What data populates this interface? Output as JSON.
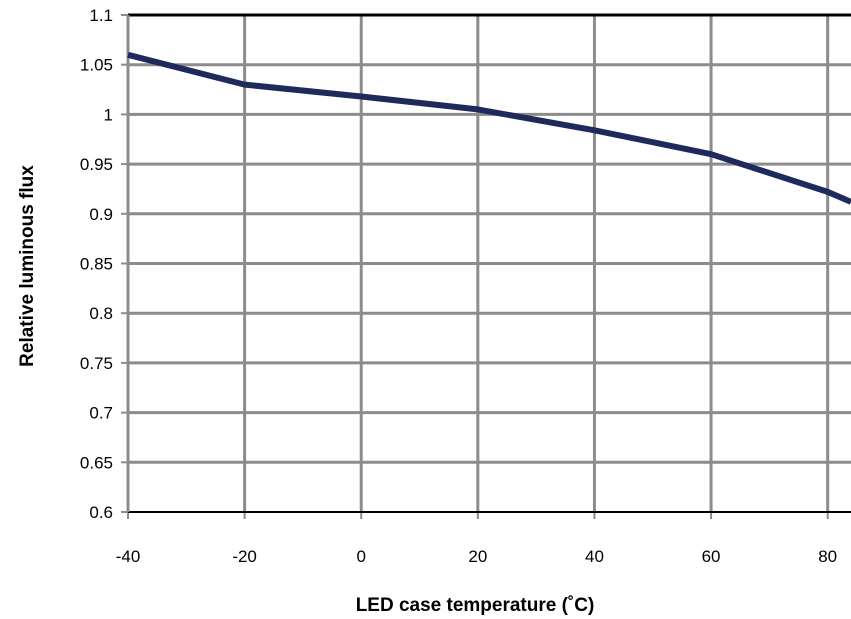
{
  "chart_data": {
    "type": "line",
    "title": "",
    "xlabel": "LED case temperature (˚C)",
    "ylabel": "Relative luminous flux",
    "x_ticks": [
      "-40",
      "-20",
      "0",
      "20",
      "40",
      "60",
      "80"
    ],
    "y_ticks": [
      "1.1",
      "1.05",
      "1",
      "0.95",
      "0.9",
      "0.85",
      "0.8",
      "0.75",
      "0.7",
      "0.65",
      "0.6"
    ],
    "xlim": [
      -40,
      84
    ],
    "ylim": [
      0.6,
      1.1
    ],
    "grid": true,
    "legend": "none",
    "series": [
      {
        "color": "#1f2a5c",
        "x": [
          -40,
          -20,
          0,
          20,
          40,
          60,
          80,
          84
        ],
        "y": [
          1.06,
          1.03,
          1.018,
          1.005,
          0.984,
          0.96,
          0.922,
          0.912
        ]
      }
    ]
  }
}
